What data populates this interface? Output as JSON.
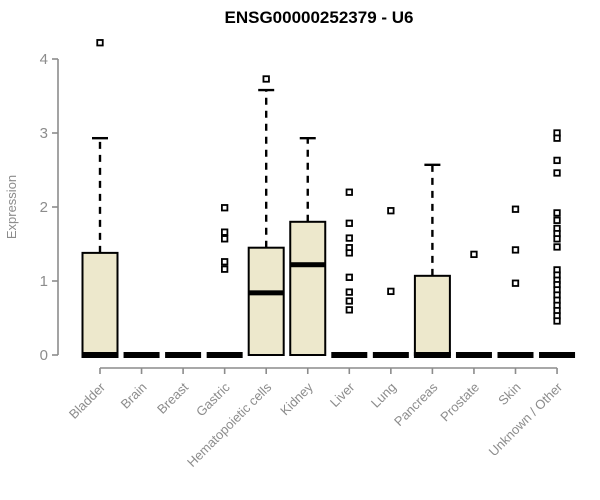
{
  "chart_data": {
    "type": "boxplot",
    "title": "ENSG00000252379 - U6",
    "ylabel": "Expression",
    "xlabel": "",
    "ylim": [
      0,
      4
    ],
    "yticks": [
      0,
      1,
      2,
      3,
      4
    ],
    "grid": false,
    "legend": false,
    "colors": {
      "box_fill": "#ede8cc",
      "box_stroke": "#000000",
      "median": "#000000",
      "whisker": "#000000",
      "outlier": "#000000",
      "axis": "#8c8c8c",
      "tick_text": "#8c8c8c",
      "title_text": "#000000"
    },
    "categories": [
      "Bladder",
      "Brain",
      "Breast",
      "Gastric",
      "Hematopoietic cells",
      "Kidney",
      "Liver",
      "Lung",
      "Pancreas",
      "Prostate",
      "Skin",
      "Unknown / Other"
    ],
    "boxes": [
      {
        "category": "Bladder",
        "whisker_low": 0,
        "q1": 0,
        "median": 0,
        "q3": 1.38,
        "whisker_high": 2.93,
        "outliers": [
          4.22
        ]
      },
      {
        "category": "Brain",
        "whisker_low": 0,
        "q1": 0,
        "median": 0,
        "q3": 0,
        "whisker_high": 0,
        "outliers": []
      },
      {
        "category": "Breast",
        "whisker_low": 0,
        "q1": 0,
        "median": 0,
        "q3": 0,
        "whisker_high": 0,
        "outliers": []
      },
      {
        "category": "Gastric",
        "whisker_low": 0,
        "q1": 0,
        "median": 0,
        "q3": 0,
        "whisker_high": 0,
        "outliers": [
          1.99,
          1.66,
          1.57,
          1.26,
          1.16
        ]
      },
      {
        "category": "Hematopoietic cells",
        "whisker_low": 0,
        "q1": 0,
        "median": 0.84,
        "q3": 1.45,
        "whisker_high": 3.58,
        "outliers": [
          3.73
        ]
      },
      {
        "category": "Kidney",
        "whisker_low": 0,
        "q1": 0,
        "median": 1.22,
        "q3": 1.8,
        "whisker_high": 2.93,
        "outliers": []
      },
      {
        "category": "Liver",
        "whisker_low": 0,
        "q1": 0,
        "median": 0,
        "q3": 0,
        "whisker_high": 0,
        "outliers": [
          2.2,
          1.78,
          1.58,
          1.45,
          1.38,
          1.05,
          0.85,
          0.73,
          0.61
        ]
      },
      {
        "category": "Lung",
        "whisker_low": 0,
        "q1": 0,
        "median": 0,
        "q3": 0,
        "whisker_high": 0,
        "outliers": [
          1.95,
          0.86
        ]
      },
      {
        "category": "Pancreas",
        "whisker_low": 0,
        "q1": 0,
        "median": 0,
        "q3": 1.07,
        "whisker_high": 2.57,
        "outliers": []
      },
      {
        "category": "Prostate",
        "whisker_low": 0,
        "q1": 0,
        "median": 0,
        "q3": 0,
        "whisker_high": 0,
        "outliers": [
          1.36
        ]
      },
      {
        "category": "Skin",
        "whisker_low": 0,
        "q1": 0,
        "median": 0,
        "q3": 0,
        "whisker_high": 0,
        "outliers": [
          1.97,
          1.42,
          0.97
        ]
      },
      {
        "category": "Unknown / Other",
        "whisker_low": 0,
        "q1": 0,
        "median": 0,
        "q3": 0,
        "whisker_high": 0,
        "outliers": [
          3.0,
          2.93,
          2.63,
          2.46,
          1.92,
          1.82,
          1.71,
          1.64,
          1.57,
          1.46,
          1.15,
          1.08,
          1.01,
          0.95,
          0.88,
          0.81,
          0.74,
          0.67,
          0.6,
          0.53,
          0.46
        ]
      }
    ]
  }
}
